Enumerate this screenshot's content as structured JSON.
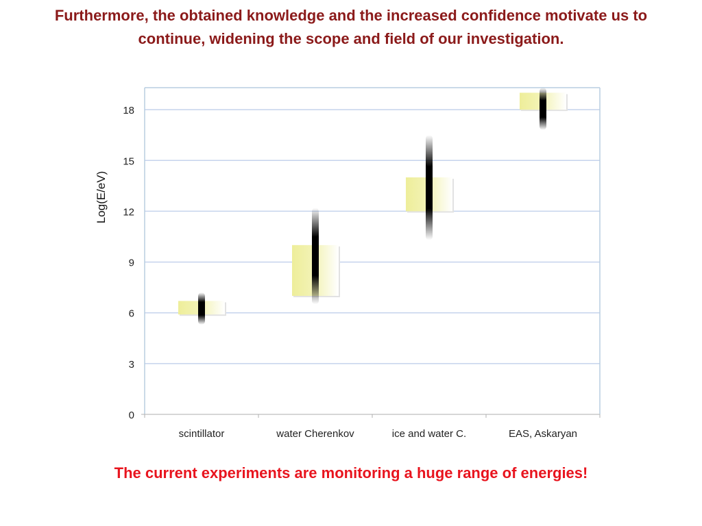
{
  "slide": {
    "heading_line1": "Furthermore, the obtained knowledge and the increased confidence motivate us to",
    "heading_line2": "continue, widening the scope and field of our investigation.",
    "footer": "The current experiments are  monitoring a huge range of energies!",
    "heading_color": "#8b1a1a",
    "footer_color": "#e8141e"
  },
  "chart_data": {
    "type": "bar",
    "title": "",
    "xlabel": "",
    "ylabel": "Log(E/eV)",
    "ylim": [
      0,
      19.3
    ],
    "yticks": [
      0,
      3,
      6,
      9,
      12,
      15,
      18
    ],
    "grid": true,
    "categories": [
      "scintillator",
      "water Cherenkov",
      "ice and water C.",
      "EAS, Askaryan"
    ],
    "ranges": [
      {
        "low": 5.9,
        "high": 6.7
      },
      {
        "low": 7.0,
        "high": 10.0
      },
      {
        "low": 12.0,
        "high": 14.0
      },
      {
        "low": 18.0,
        "high": 19.0
      }
    ],
    "spreads": [
      {
        "low": 5.3,
        "high": 7.2
      },
      {
        "low": 6.5,
        "high": 12.2
      },
      {
        "low": 10.3,
        "high": 16.5
      },
      {
        "low": 16.8,
        "high": 19.3
      }
    ],
    "colors": {
      "range_fill": "#f0f0a0",
      "spread": "#000000",
      "grid": "#c5d3ec",
      "axis": "#b8cde0"
    }
  }
}
